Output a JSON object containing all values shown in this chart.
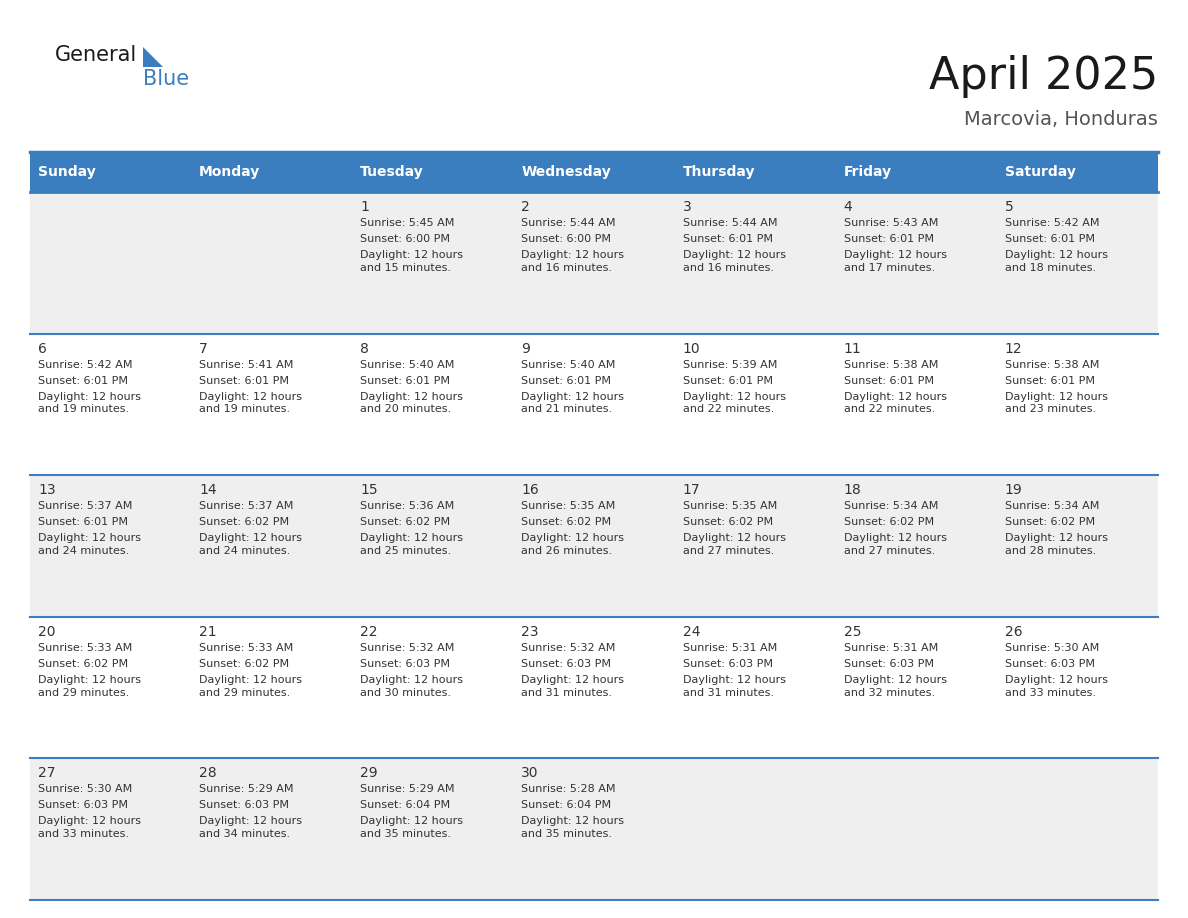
{
  "title": "April 2025",
  "subtitle": "Marcovia, Honduras",
  "header_bg_color": "#3A7EBF",
  "header_text_color": "#FFFFFF",
  "cell_bg_color_odd": "#EFEFEF",
  "cell_bg_color_even": "#FFFFFF",
  "cell_text_color": "#333333",
  "border_color": "#3A7EBF",
  "days_of_week": [
    "Sunday",
    "Monday",
    "Tuesday",
    "Wednesday",
    "Thursday",
    "Friday",
    "Saturday"
  ],
  "weeks": [
    [
      {
        "day": "",
        "sunrise": "",
        "sunset": "",
        "daylight": ""
      },
      {
        "day": "",
        "sunrise": "",
        "sunset": "",
        "daylight": ""
      },
      {
        "day": "1",
        "sunrise": "5:45 AM",
        "sunset": "6:00 PM",
        "daylight": "12 hours\nand 15 minutes."
      },
      {
        "day": "2",
        "sunrise": "5:44 AM",
        "sunset": "6:00 PM",
        "daylight": "12 hours\nand 16 minutes."
      },
      {
        "day": "3",
        "sunrise": "5:44 AM",
        "sunset": "6:01 PM",
        "daylight": "12 hours\nand 16 minutes."
      },
      {
        "day": "4",
        "sunrise": "5:43 AM",
        "sunset": "6:01 PM",
        "daylight": "12 hours\nand 17 minutes."
      },
      {
        "day": "5",
        "sunrise": "5:42 AM",
        "sunset": "6:01 PM",
        "daylight": "12 hours\nand 18 minutes."
      }
    ],
    [
      {
        "day": "6",
        "sunrise": "5:42 AM",
        "sunset": "6:01 PM",
        "daylight": "12 hours\nand 19 minutes."
      },
      {
        "day": "7",
        "sunrise": "5:41 AM",
        "sunset": "6:01 PM",
        "daylight": "12 hours\nand 19 minutes."
      },
      {
        "day": "8",
        "sunrise": "5:40 AM",
        "sunset": "6:01 PM",
        "daylight": "12 hours\nand 20 minutes."
      },
      {
        "day": "9",
        "sunrise": "5:40 AM",
        "sunset": "6:01 PM",
        "daylight": "12 hours\nand 21 minutes."
      },
      {
        "day": "10",
        "sunrise": "5:39 AM",
        "sunset": "6:01 PM",
        "daylight": "12 hours\nand 22 minutes."
      },
      {
        "day": "11",
        "sunrise": "5:38 AM",
        "sunset": "6:01 PM",
        "daylight": "12 hours\nand 22 minutes."
      },
      {
        "day": "12",
        "sunrise": "5:38 AM",
        "sunset": "6:01 PM",
        "daylight": "12 hours\nand 23 minutes."
      }
    ],
    [
      {
        "day": "13",
        "sunrise": "5:37 AM",
        "sunset": "6:01 PM",
        "daylight": "12 hours\nand 24 minutes."
      },
      {
        "day": "14",
        "sunrise": "5:37 AM",
        "sunset": "6:02 PM",
        "daylight": "12 hours\nand 24 minutes."
      },
      {
        "day": "15",
        "sunrise": "5:36 AM",
        "sunset": "6:02 PM",
        "daylight": "12 hours\nand 25 minutes."
      },
      {
        "day": "16",
        "sunrise": "5:35 AM",
        "sunset": "6:02 PM",
        "daylight": "12 hours\nand 26 minutes."
      },
      {
        "day": "17",
        "sunrise": "5:35 AM",
        "sunset": "6:02 PM",
        "daylight": "12 hours\nand 27 minutes."
      },
      {
        "day": "18",
        "sunrise": "5:34 AM",
        "sunset": "6:02 PM",
        "daylight": "12 hours\nand 27 minutes."
      },
      {
        "day": "19",
        "sunrise": "5:34 AM",
        "sunset": "6:02 PM",
        "daylight": "12 hours\nand 28 minutes."
      }
    ],
    [
      {
        "day": "20",
        "sunrise": "5:33 AM",
        "sunset": "6:02 PM",
        "daylight": "12 hours\nand 29 minutes."
      },
      {
        "day": "21",
        "sunrise": "5:33 AM",
        "sunset": "6:02 PM",
        "daylight": "12 hours\nand 29 minutes."
      },
      {
        "day": "22",
        "sunrise": "5:32 AM",
        "sunset": "6:03 PM",
        "daylight": "12 hours\nand 30 minutes."
      },
      {
        "day": "23",
        "sunrise": "5:32 AM",
        "sunset": "6:03 PM",
        "daylight": "12 hours\nand 31 minutes."
      },
      {
        "day": "24",
        "sunrise": "5:31 AM",
        "sunset": "6:03 PM",
        "daylight": "12 hours\nand 31 minutes."
      },
      {
        "day": "25",
        "sunrise": "5:31 AM",
        "sunset": "6:03 PM",
        "daylight": "12 hours\nand 32 minutes."
      },
      {
        "day": "26",
        "sunrise": "5:30 AM",
        "sunset": "6:03 PM",
        "daylight": "12 hours\nand 33 minutes."
      }
    ],
    [
      {
        "day": "27",
        "sunrise": "5:30 AM",
        "sunset": "6:03 PM",
        "daylight": "12 hours\nand 33 minutes."
      },
      {
        "day": "28",
        "sunrise": "5:29 AM",
        "sunset": "6:03 PM",
        "daylight": "12 hours\nand 34 minutes."
      },
      {
        "day": "29",
        "sunrise": "5:29 AM",
        "sunset": "6:04 PM",
        "daylight": "12 hours\nand 35 minutes."
      },
      {
        "day": "30",
        "sunrise": "5:28 AM",
        "sunset": "6:04 PM",
        "daylight": "12 hours\nand 35 minutes."
      },
      {
        "day": "",
        "sunrise": "",
        "sunset": "",
        "daylight": ""
      },
      {
        "day": "",
        "sunrise": "",
        "sunset": "",
        "daylight": ""
      },
      {
        "day": "",
        "sunrise": "",
        "sunset": "",
        "daylight": ""
      }
    ]
  ],
  "logo_general_color": "#1a1a1a",
  "logo_blue_color": "#3A7EBF",
  "logo_triangle_color": "#3A7EBF",
  "title_color": "#1a1a1a",
  "subtitle_color": "#555555",
  "title_fontsize": 32,
  "subtitle_fontsize": 14,
  "header_fontsize": 10,
  "day_num_fontsize": 10,
  "cell_fontsize": 8
}
